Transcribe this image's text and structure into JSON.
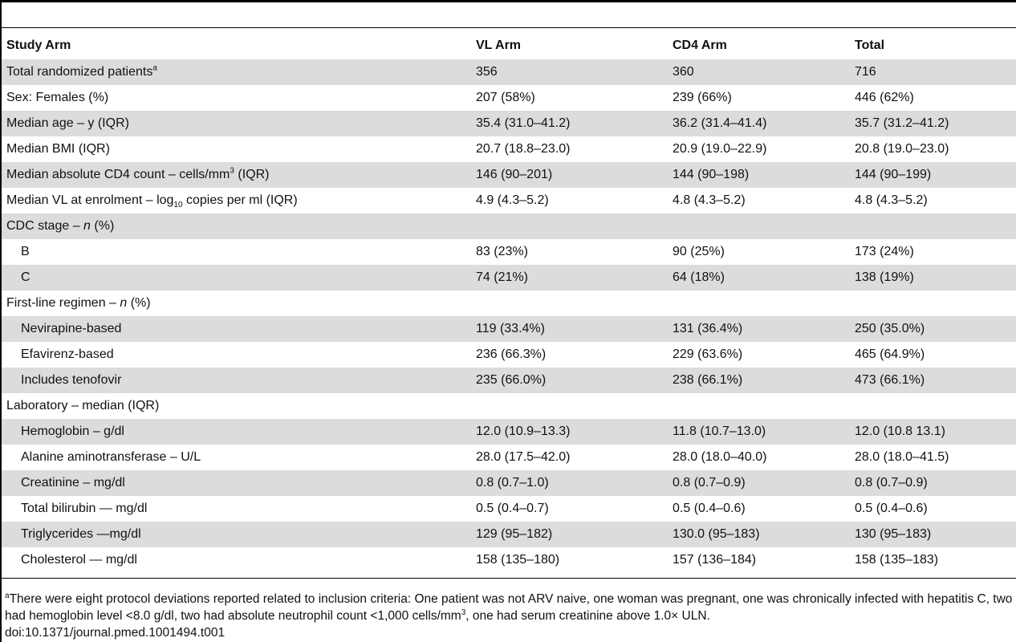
{
  "table": {
    "headers": [
      "Study Arm",
      "VL Arm",
      "CD4 Arm",
      "Total"
    ],
    "rows": [
      {
        "label": "Total randomized patients",
        "label_sup": "a",
        "vl": "356",
        "cd4": "360",
        "total": "716"
      },
      {
        "label": "Sex: Females (%)",
        "vl": "207 (58%)",
        "cd4": "239 (66%)",
        "total": "446 (62%)"
      },
      {
        "label": "Median age – y (IQR)",
        "vl": "35.4 (31.0–41.2)",
        "cd4": "36.2 (31.4–41.4)",
        "total": "35.7 (31.2–41.2)"
      },
      {
        "label": "Median BMI (IQR)",
        "vl": "20.7 (18.8–23.0)",
        "cd4": "20.9 (19.0–22.9)",
        "total": "20.8 (19.0–23.0)"
      },
      {
        "label_pre": "Median absolute CD4 count – cells/mm",
        "label_sup": "3",
        "label_post": " (IQR)",
        "vl": "146 (90–201)",
        "cd4": "144 (90–198)",
        "total": "144 (90–199)"
      },
      {
        "label_pre": "Median VL at enrolment – log",
        "label_sub": "10",
        "label_post": " copies per ml (IQR)",
        "vl": "4.9 (4.3–5.2)",
        "cd4": "4.8 (4.3–5.2)",
        "total": "4.8 (4.3–5.2)"
      },
      {
        "label_pre": "CDC stage – ",
        "label_italic": "n",
        "label_post": " (%)",
        "vl": "",
        "cd4": "",
        "total": ""
      },
      {
        "label": "B",
        "indent": true,
        "vl": "83 (23%)",
        "cd4": "90 (25%)",
        "total": "173 (24%)"
      },
      {
        "label": "C",
        "indent": true,
        "vl": "74 (21%)",
        "cd4": "64 (18%)",
        "total": "138 (19%)"
      },
      {
        "label_pre": "First-line regimen – ",
        "label_italic": "n",
        "label_post": " (%)",
        "vl": "",
        "cd4": "",
        "total": ""
      },
      {
        "label": "Nevirapine-based",
        "indent": true,
        "vl": "119 (33.4%)",
        "cd4": "131 (36.4%)",
        "total": "250 (35.0%)"
      },
      {
        "label": "Efavirenz-based",
        "indent": true,
        "vl": "236 (66.3%)",
        "cd4": "229 (63.6%)",
        "total": "465 (64.9%)"
      },
      {
        "label": "Includes tenofovir",
        "indent": true,
        "vl": "235 (66.0%)",
        "cd4": "238 (66.1%)",
        "total": "473 (66.1%)"
      },
      {
        "label": "Laboratory – median (IQR)",
        "vl": "",
        "cd4": "",
        "total": ""
      },
      {
        "label": "Hemoglobin – g/dl",
        "indent": true,
        "vl": "12.0 (10.9–13.3)",
        "cd4": "11.8 (10.7–13.0)",
        "total": "12.0 (10.8 13.1)"
      },
      {
        "label": "Alanine aminotransferase – U/L",
        "indent": true,
        "vl": "28.0 (17.5–42.0)",
        "cd4": "28.0 (18.0–40.0)",
        "total": "28.0 (18.0–41.5)"
      },
      {
        "label": "Creatinine – mg/dl",
        "indent": true,
        "vl": "0.8 (0.7–1.0)",
        "cd4": "0.8 (0.7–0.9)",
        "total": "0.8 (0.7–0.9)"
      },
      {
        "label": "Total bilirubin — mg/dl",
        "indent": true,
        "vl": "0.5 (0.4–0.7)",
        "cd4": "0.5 (0.4–0.6)",
        "total": "0.5 (0.4–0.6)"
      },
      {
        "label": "Triglycerides —mg/dl",
        "indent": true,
        "vl": "129 (95–182)",
        "cd4": "130.0 (95–183)",
        "total": "130 (95–183)"
      },
      {
        "label": "Cholesterol — mg/dl",
        "indent": true,
        "vl": "158 (135–180)",
        "cd4": "157 (136–184)",
        "total": "158 (135–183)"
      }
    ]
  },
  "footnote": {
    "marker": "a",
    "text_1": "There were eight protocol deviations reported related to inclusion criteria: One patient was not ARV naive, one woman was pregnant, one was chronically infected with hepatitis C, two had hemoglobin level <8.0 g/dl, two had absolute neutrophil count <1,000 cells/mm",
    "sup": "3",
    "text_2": ", one had serum creatinine above 1.0× ULN.",
    "doi": "doi:10.1371/journal.pmed.1001494.t001"
  }
}
